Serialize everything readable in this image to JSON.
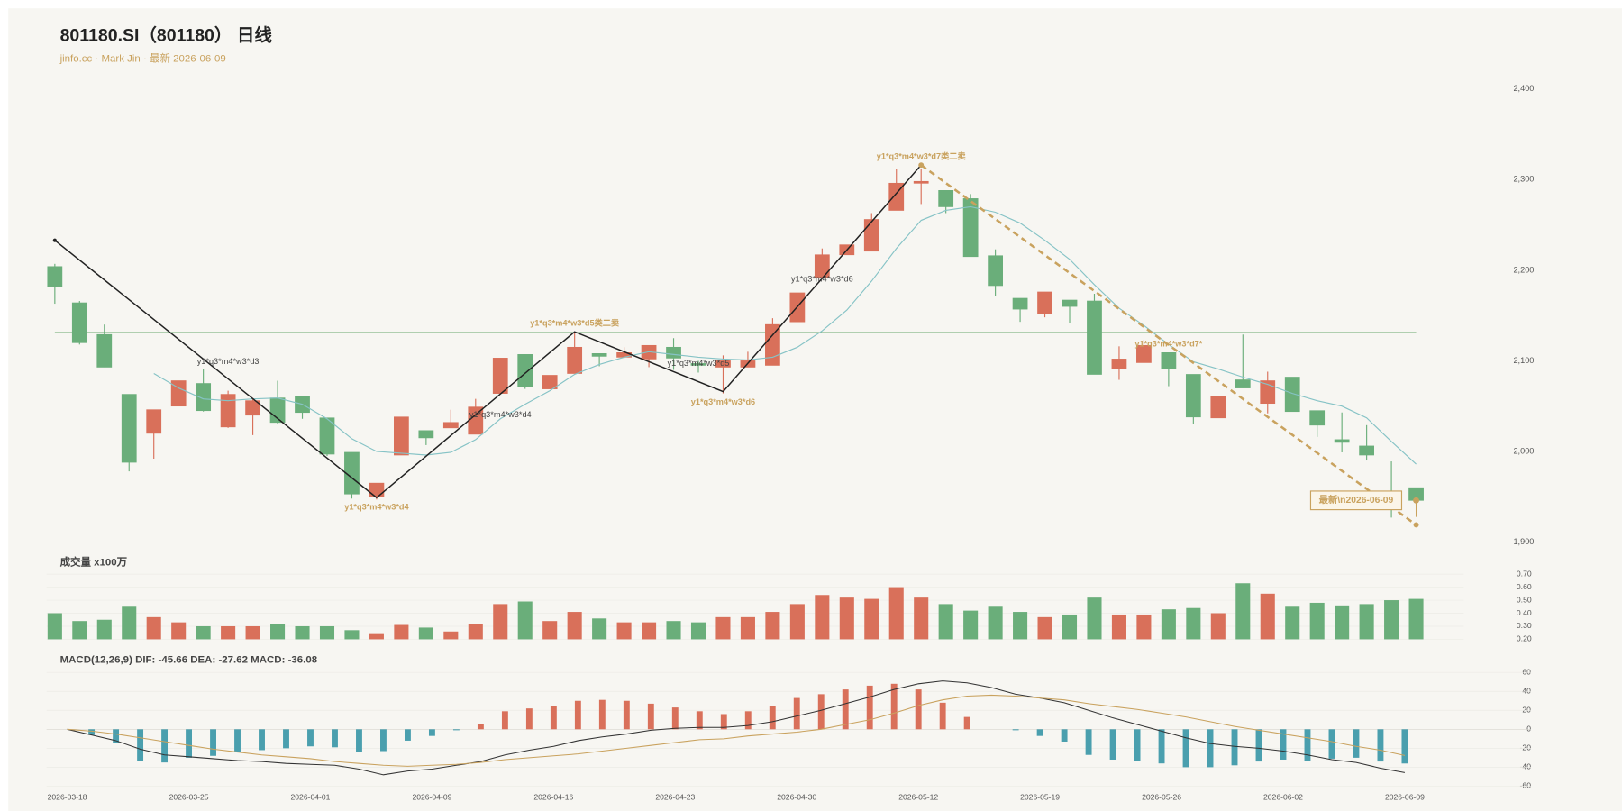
{
  "chart_data": [
    {
      "type": "candlestick",
      "title": "801180.SI（801180） 日线",
      "subtitle": "jinfo.cc · Mark Jin · 最新 2026-06-09",
      "open": [
        2204,
        2164,
        2129,
        2063,
        2020,
        2050,
        2075,
        2027,
        2040,
        2059,
        2061,
        2037,
        1999,
        1950,
        1996,
        2023,
        2026,
        2019,
        2064,
        2107,
        2069,
        2086,
        2108,
        2104,
        2102,
        2115,
        2097,
        2093,
        2093,
        2095,
        2143,
        2192,
        2217,
        2221,
        2266,
        2296,
        2288,
        2279,
        2216,
        2169,
        2152,
        2167,
        2166,
        2091,
        2098,
        2109,
        2085,
        2037,
        2079,
        2053,
        2082,
        2045,
        2013,
        2006,
        1951,
        1960
      ],
      "high": [
        2207,
        2166,
        2140,
        2063,
        2046,
        2078,
        2091,
        2067,
        2059,
        2078,
        2061,
        2037,
        1999,
        1965,
        2038,
        2023,
        2046,
        2058,
        2103,
        2107,
        2084,
        2131,
        2108,
        2115,
        2117,
        2125,
        2100,
        2106,
        2110,
        2147,
        2175,
        2224,
        2228,
        2263,
        2312,
        2312,
        2288,
        2284,
        2223,
        2169,
        2176,
        2167,
        2174,
        2116,
        2123,
        2109,
        2085,
        2061,
        2129,
        2088,
        2082,
        2045,
        2043,
        2029,
        1989,
        1960
      ],
      "low": [
        2163,
        2118,
        2093,
        1978,
        1992,
        2050,
        2044,
        2026,
        2018,
        2030,
        2036,
        1995,
        1948,
        1947,
        1996,
        2007,
        2026,
        2019,
        2064,
        2069,
        2069,
        2086,
        2094,
        2103,
        2093,
        2090,
        2087,
        2064,
        2093,
        2095,
        2143,
        2192,
        2217,
        2221,
        2266,
        2273,
        2263,
        2215,
        2171,
        2143,
        2148,
        2142,
        2085,
        2079,
        2098,
        2072,
        2030,
        2037,
        2070,
        2042,
        2044,
        2016,
        1999,
        1990,
        1927,
        1939
      ],
      "close": [
        2182,
        2120,
        2093,
        1988,
        2046,
        2078,
        2045,
        2063,
        2056,
        2032,
        2043,
        1997,
        1953,
        1965,
        2038,
        2015,
        2032,
        2049,
        2103,
        2071,
        2084,
        2115,
        2105,
        2109,
        2117,
        2103,
        2095,
        2100,
        2100,
        2140,
        2175,
        2217,
        2228,
        2256,
        2296,
        2298,
        2270,
        2215,
        2183,
        2157,
        2176,
        2160,
        2085,
        2102,
        2117,
        2091,
        2038,
        2061,
        2070,
        2078,
        2044,
        2029,
        2010,
        1996,
        1949,
        1946
      ],
      "up_color": "#d9705a",
      "down_color": "#6aae7a",
      "ma": {
        "color": "#86c3c6",
        "values": [
          null,
          null,
          null,
          null,
          2086,
          2070,
          2058,
          2056,
          2058,
          2059,
          2052,
          2036,
          2014,
          2000,
          1998,
          1996,
          1999,
          2013,
          2036,
          2052,
          2067,
          2085,
          2096,
          2104,
          2110,
          2107,
          2104,
          2102,
          2101,
          2104,
          2115,
          2133,
          2156,
          2188,
          2224,
          2255,
          2266,
          2270,
          2264,
          2252,
          2233,
          2212,
          2184,
          2158,
          2139,
          2118,
          2099,
          2091,
          2082,
          2074,
          2064,
          2056,
          2050,
          2037,
          2011,
          1986
        ]
      },
      "hline": {
        "value": 2131,
        "color": "#6aa86f"
      },
      "zigzag": {
        "color": "#222222",
        "x": [
          0,
          13,
          21,
          27,
          35
        ],
        "values": [
          2233,
          1949,
          2132,
          2066,
          2316
        ]
      },
      "trend": {
        "color": "#c9a25e",
        "dashed": true,
        "x": [
          35,
          55
        ],
        "values": [
          2316,
          1919
        ]
      },
      "annotations": [
        {
          "text": "y1*q3*m4*w3*d3",
          "x": 7,
          "y": 2099,
          "color": "#444444"
        },
        {
          "text": "y1*q3*m4*w3*d4",
          "x": 13,
          "y": 1938,
          "color": "#c9a25e"
        },
        {
          "text": "y1*q3*m4*w3*d4",
          "x": 18,
          "y": 2040,
          "color": "#444444"
        },
        {
          "text": "y1*q3*m4*w3*d5类二卖",
          "x": 21,
          "y": 2141,
          "color": "#c9a25e"
        },
        {
          "text": "y1*q3*m4*w3*d5",
          "x": 26,
          "y": 2097,
          "color": "#444444"
        },
        {
          "text": "y1*q3*m4*w3*d6",
          "x": 27,
          "y": 2054,
          "color": "#c9a25e"
        },
        {
          "text": "y1*q3*m4*w3*d6",
          "x": 31,
          "y": 2190,
          "color": "#444444"
        },
        {
          "text": "y1*q3*m4*w3*d7类二卖",
          "x": 35,
          "y": 2325,
          "color": "#c9a25e"
        },
        {
          "text": "y1*q3*m4*w3*d7*",
          "x": 45,
          "y": 2118,
          "color": "#c9a25e"
        }
      ],
      "latest_label": {
        "text": "最新\\n2026-06-09",
        "color": "#c9a25e"
      },
      "ylim": [
        1900,
        2400
      ],
      "yticks": [
        {
          "value": 1900,
          "label": "1,900"
        },
        {
          "value": 2000,
          "label": "2,000"
        },
        {
          "value": 2100,
          "label": "2,100"
        },
        {
          "value": 2200,
          "label": "2,200"
        },
        {
          "value": 2300,
          "label": "2,300"
        },
        {
          "value": 2400,
          "label": "2,400"
        }
      ]
    },
    {
      "type": "bar",
      "title": "成交量 x100万",
      "values": [
        0.4,
        0.34,
        0.35,
        0.45,
        0.37,
        0.33,
        0.3,
        0.3,
        0.3,
        0.32,
        0.3,
        0.3,
        0.27,
        0.24,
        0.31,
        0.29,
        0.26,
        0.32,
        0.47,
        0.49,
        0.34,
        0.41,
        0.36,
        0.33,
        0.33,
        0.34,
        0.33,
        0.37,
        0.37,
        0.41,
        0.47,
        0.54,
        0.52,
        0.51,
        0.6,
        0.52,
        0.47,
        0.42,
        0.45,
        0.41,
        0.37,
        0.39,
        0.52,
        0.39,
        0.39,
        0.43,
        0.44,
        0.4,
        0.63,
        0.55,
        0.45,
        0.48,
        0.46,
        0.47,
        0.5,
        0.51
      ],
      "ylim": [
        0.2,
        0.7
      ],
      "yticks": [
        {
          "value": 0.2,
          "label": "0.20"
        },
        {
          "value": 0.3,
          "label": "0.30"
        },
        {
          "value": 0.4,
          "label": "0.40"
        },
        {
          "value": 0.5,
          "label": "0.50"
        },
        {
          "value": 0.6,
          "label": "0.60"
        },
        {
          "value": 0.7,
          "label": "0.70"
        }
      ],
      "grid": true
    },
    {
      "type": "macd",
      "title": "MACD(12,26,9) DIF: -45.66 DEA: -27.62 MACD: -36.08",
      "x": [
        "2026-03-18",
        null,
        null,
        null,
        null,
        "2026-03-25",
        null,
        null,
        null,
        null,
        "2026-04-01",
        null,
        null,
        null,
        null,
        "2026-04-09",
        null,
        null,
        null,
        null,
        "2026-04-16",
        null,
        null,
        null,
        null,
        "2026-04-23",
        null,
        null,
        null,
        null,
        "2026-04-30",
        null,
        null,
        null,
        null,
        "2026-05-12",
        null,
        null,
        null,
        null,
        "2026-05-19",
        null,
        null,
        null,
        null,
        "2026-05-26",
        null,
        null,
        null,
        null,
        "2026-06-02",
        null,
        null,
        null,
        null,
        "2026-06-09"
      ],
      "histogram": {
        "pos_color": "#d9705a",
        "neg_color": "#4a9fae",
        "values": [
          0,
          -6,
          -14,
          -33,
          -35,
          -30,
          -28,
          -24,
          -22,
          -20,
          -18,
          -19,
          -24,
          -23,
          -12,
          -7,
          -1,
          6,
          19,
          22,
          25,
          30,
          31,
          30,
          27,
          23,
          19,
          16,
          19,
          25,
          33,
          37,
          42,
          46,
          48,
          42,
          28,
          13,
          0,
          -1,
          -7,
          -13,
          -27,
          -32,
          -33,
          -36,
          -40,
          -40,
          -38,
          -34,
          -32,
          -33,
          -31,
          -30,
          -34,
          -36.08
        ]
      },
      "series": [
        {
          "color": "#333333",
          "values": [
            0,
            -6,
            -12,
            -21,
            -27,
            -29,
            -31,
            -33,
            -34,
            -36,
            -37,
            -38,
            -42,
            -48,
            -44,
            -42,
            -38,
            -34,
            -27,
            -22,
            -18,
            -12,
            -8,
            -5,
            -1,
            1,
            2,
            2,
            4,
            8,
            14,
            20,
            27,
            34,
            42,
            48,
            51,
            49,
            44,
            37,
            33,
            28,
            20,
            12,
            5,
            -2,
            -9,
            -15,
            -18,
            -20,
            -23,
            -27,
            -32,
            -35,
            -41,
            -45.66
          ]
        },
        {
          "color": "#c9a25e",
          "values": [
            0,
            -2,
            -5,
            -9,
            -13,
            -17,
            -21,
            -24,
            -27,
            -29,
            -31,
            -34,
            -36,
            -38,
            -39,
            -38,
            -37,
            -35,
            -32,
            -30,
            -28,
            -26,
            -23,
            -20,
            -17,
            -14,
            -11,
            -10,
            -7,
            -5,
            -3,
            0,
            5,
            10,
            17,
            25,
            31,
            35,
            36,
            35,
            33,
            31,
            27,
            24,
            21,
            17,
            13,
            8,
            3,
            -1,
            -5,
            -9,
            -13,
            -18,
            -22,
            -27.62
          ]
        }
      ],
      "ylim": [
        -60,
        60
      ],
      "yticks": [
        -60,
        -40,
        -20,
        0,
        20,
        40,
        60
      ],
      "grid": true
    }
  ]
}
